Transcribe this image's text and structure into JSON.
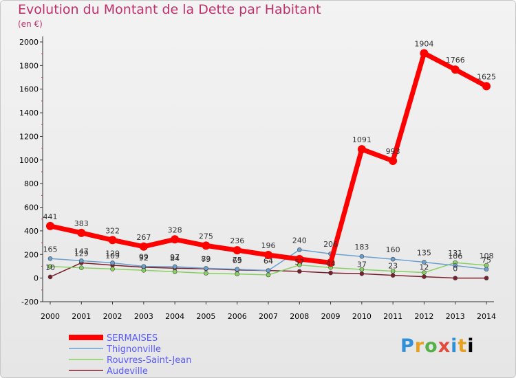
{
  "chart_data": {
    "type": "line",
    "title": "Evolution du Montant de la Dette par Habitant",
    "subtitle": "(en €)",
    "x": [
      "2000",
      "2001",
      "2002",
      "2003",
      "2004",
      "2005",
      "2006",
      "2007",
      "2008",
      "2009",
      "2010",
      "2011",
      "2012",
      "2013",
      "2014"
    ],
    "ylim": [
      -200,
      2000
    ],
    "yticks": [
      -200,
      0,
      200,
      400,
      600,
      800,
      1000,
      1200,
      1400,
      1600,
      1800,
      2000
    ],
    "grid": false,
    "legend_position": "bottom-left",
    "series": [
      {
        "name": "SERMAISES",
        "color": "#ff0000",
        "values": [
          441,
          383,
          322,
          267,
          328,
          275,
          236,
          196,
          161,
          130,
          1091,
          993,
          1904,
          1766,
          1625
        ],
        "labels": [
          "441",
          "383",
          "322",
          "267",
          "328",
          "275",
          "236",
          "196",
          "",
          "",
          "1091",
          "993",
          "1904",
          "1766",
          "1625"
        ]
      },
      {
        "name": "Thignonville",
        "color": "#6aa0d0",
        "values": [
          165,
          147,
          129,
          99,
          97,
          83,
          75,
          64,
          240,
          206,
          183,
          160,
          135,
          106,
          75
        ],
        "labels": [
          "165",
          "147",
          "129",
          "99",
          "97",
          "83",
          "75",
          "64",
          "240",
          "206",
          "183",
          "160",
          "135",
          "106",
          "75"
        ]
      },
      {
        "name": "Rouvres-Saint-Jean",
        "color": "#88d060",
        "values": [
          99,
          87,
          77,
          66,
          54,
          41,
          35,
          27,
          111,
          89,
          73,
          59,
          47,
          131,
          108
        ],
        "labels": [
          "",
          "",
          "",
          "",
          "",
          "",
          "",
          "",
          "",
          "",
          "",
          "",
          "",
          "131",
          "108"
        ]
      },
      {
        "name": "Audeville",
        "color": "#7a1e2a",
        "values": [
          10,
          129,
          109,
          92,
          84,
          79,
          69,
          64,
          57,
          44,
          37,
          23,
          12,
          0,
          0
        ],
        "labels": [
          "10",
          "129",
          "109",
          "92",
          "84",
          "79",
          "69",
          "64",
          "57",
          "44",
          "37",
          "23",
          "12",
          "0",
          ""
        ]
      }
    ]
  },
  "branding": {
    "logo_letters": [
      "P",
      "r",
      "o",
      "x",
      "i",
      "t",
      "i"
    ]
  }
}
